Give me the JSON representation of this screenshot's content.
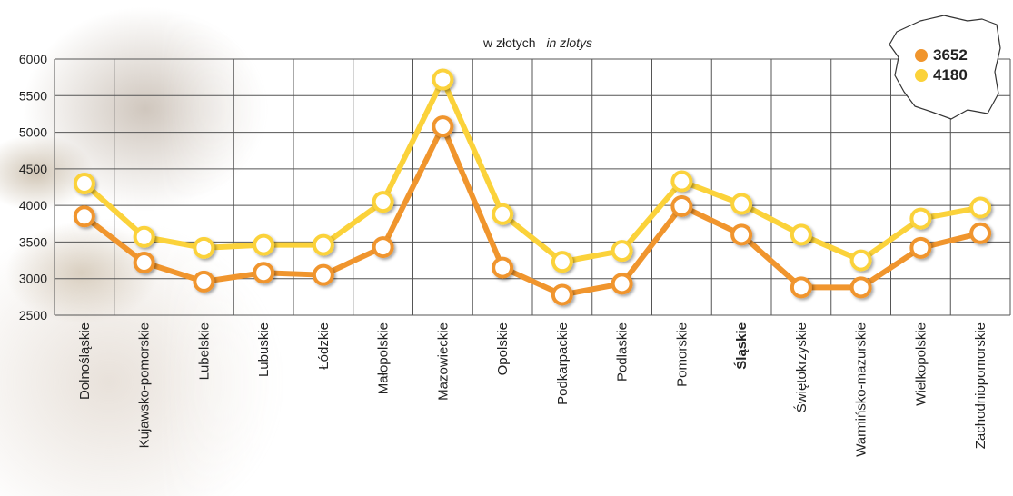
{
  "chart_data": {
    "type": "line",
    "subtitle": "w złotych",
    "subtitle_italic": "in zlotys",
    "categories": [
      "Dolnośląskie",
      "Kujawsko-pomorskie",
      "Lubelskie",
      "Lubuskie",
      "Łódzkie",
      "Małopolskie",
      "Mazowieckie",
      "Opolskie",
      "Podkarpackie",
      "Podlaskie",
      "Pomorskie",
      "Śląskie",
      "Świętokrzyskie",
      "Warmińsko-mazurskie",
      "Wielkopolskie",
      "Zachodniopomorskie"
    ],
    "highlighted_category": "Śląskie",
    "ylim": [
      2500,
      6000
    ],
    "yticks": [
      2500,
      3000,
      3500,
      4000,
      4500,
      5000,
      5500,
      6000
    ],
    "grid": true,
    "legend_position": "top-right",
    "series": [
      {
        "name": "3652",
        "color": "#f0952d",
        "values": [
          3850,
          3220,
          2960,
          3080,
          3050,
          3430,
          5080,
          3150,
          2780,
          2930,
          3990,
          3600,
          2880,
          2880,
          3420,
          3620
        ]
      },
      {
        "name": "4180",
        "color": "#fbd23a",
        "values": [
          4300,
          3570,
          3420,
          3460,
          3460,
          4050,
          5720,
          3880,
          3230,
          3380,
          4330,
          4020,
          3600,
          3250,
          3820,
          3970
        ]
      }
    ]
  }
}
